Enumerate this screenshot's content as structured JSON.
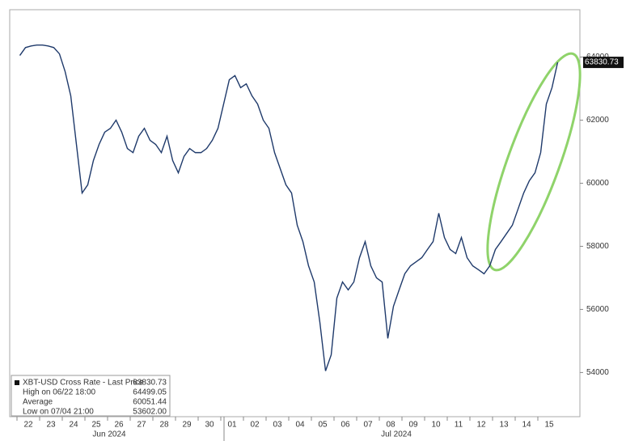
{
  "chart_data": {
    "type": "line",
    "categories": [
      "22",
      null,
      null,
      null,
      "23",
      null,
      null,
      null,
      "24",
      null,
      null,
      null,
      "25",
      null,
      null,
      null,
      "26",
      null,
      null,
      null,
      "27",
      null,
      null,
      null,
      "28",
      null,
      null,
      null,
      "29",
      null,
      null,
      null,
      "30",
      null,
      null,
      null,
      "01",
      null,
      null,
      null,
      "02",
      null,
      null,
      null,
      "03",
      null,
      null,
      null,
      "04",
      null,
      null,
      null,
      "05",
      null,
      null,
      null,
      "06",
      null,
      null,
      null,
      "07",
      null,
      null,
      null,
      "08",
      null,
      null,
      null,
      "09",
      null,
      null,
      null,
      "10",
      null,
      null,
      null,
      "11",
      null,
      null,
      null,
      "12",
      null,
      null,
      null,
      "13",
      null,
      null,
      null,
      "14",
      null,
      null,
      null,
      "15",
      null,
      null,
      null
    ],
    "month_labels": [
      "Jun 2024",
      "Jul 2024"
    ],
    "series": [
      {
        "name": "XBT-USD Cross Rate - Last Price",
        "color": "#1f3a6b",
        "values": [
          64050,
          64300,
          64350,
          64380,
          64380,
          64350,
          64300,
          64100,
          63540,
          62770,
          61230,
          59690,
          59950,
          60720,
          61230,
          61620,
          61740,
          62000,
          61620,
          61100,
          60970,
          61490,
          61740,
          61360,
          61230,
          60970,
          61490,
          60720,
          60330,
          60850,
          61100,
          60970,
          60970,
          61100,
          61360,
          61740,
          62510,
          63280,
          63410,
          63030,
          63150,
          62770,
          62510,
          62000,
          61740,
          60970,
          60460,
          59950,
          59690,
          58670,
          58150,
          57380,
          56870,
          55590,
          54050,
          54560,
          56360,
          56870,
          56620,
          56870,
          57640,
          58150,
          57380,
          57000,
          56870,
          55080,
          56100,
          56620,
          57130,
          57380,
          57510,
          57640,
          57900,
          58150,
          59050,
          58280,
          57900,
          57770,
          58280,
          57640,
          57380,
          57260,
          57130,
          57380,
          57900,
          58150,
          58410,
          58670,
          59180,
          59690,
          60080,
          60330,
          60970,
          62510,
          63030,
          63830.73
        ]
      }
    ],
    "last_price_label": "63830.73",
    "legend": [
      {
        "label": "XBT-USD Cross Rate - Last Price",
        "value": "63830.73"
      },
      {
        "label": "High on 06/22 18:00",
        "value": "64499.05"
      },
      {
        "label": "Average",
        "value": "60051.44"
      },
      {
        "label": "Low on 07/04 21:00",
        "value": "53602.00"
      }
    ],
    "ylim": [
      52600,
      65500
    ],
    "yticks": [
      54000,
      56000,
      58000,
      60000,
      62000,
      64000
    ],
    "grid": false
  }
}
